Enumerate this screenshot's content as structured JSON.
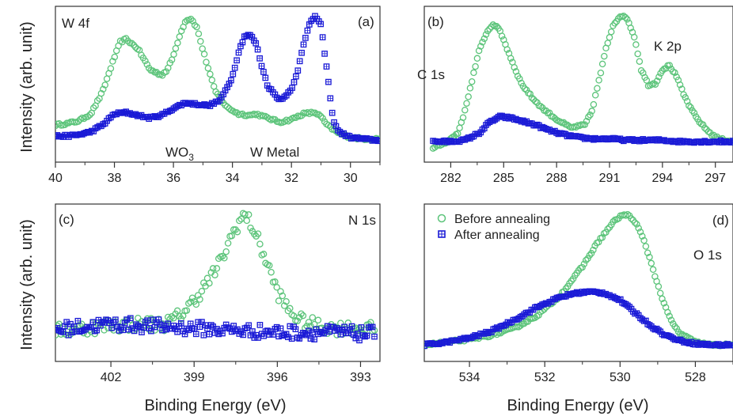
{
  "figure": {
    "ylabel": "Intensity (arb. unit)",
    "xlabel": "Binding Energy (eV)",
    "legend": [
      {
        "label": "Before annealing",
        "color": "#5cc47a",
        "marker": "circle"
      },
      {
        "label": "After annealing",
        "color": "#1b1bd6",
        "marker": "square"
      }
    ]
  },
  "chart_data": [
    {
      "type": "scatter",
      "panel": "(a)",
      "label": "W 4f",
      "xlim": [
        40,
        29
      ],
      "ylim": [
        0,
        1
      ],
      "ticks": [
        40,
        38,
        36,
        34,
        32,
        30
      ],
      "annotations": [
        "WO3",
        "W Metal"
      ],
      "series": [
        {
          "name": "Before annealing",
          "x": [
            40.0,
            39.6,
            39.2,
            38.8,
            38.4,
            38.0,
            37.8,
            37.6,
            37.2,
            36.8,
            36.4,
            36.2,
            36.0,
            35.8,
            35.6,
            35.4,
            35.2,
            35.0,
            34.6,
            34.2,
            33.8,
            33.4,
            33.2,
            32.8,
            32.4,
            32.0,
            31.6,
            31.2,
            31.0,
            30.8,
            30.4,
            30.0,
            29.6,
            29.2,
            29.0
          ],
          "y": [
            0.2,
            0.21,
            0.23,
            0.28,
            0.44,
            0.69,
            0.8,
            0.82,
            0.75,
            0.6,
            0.56,
            0.6,
            0.7,
            0.84,
            0.95,
            0.97,
            0.9,
            0.74,
            0.45,
            0.33,
            0.28,
            0.27,
            0.28,
            0.25,
            0.22,
            0.24,
            0.28,
            0.29,
            0.26,
            0.2,
            0.14,
            0.11,
            0.1,
            0.1,
            0.1
          ]
        },
        {
          "name": "After annealing",
          "x": [
            40.0,
            39.6,
            39.2,
            38.8,
            38.4,
            38.0,
            37.6,
            37.2,
            36.8,
            36.4,
            36.0,
            35.6,
            35.2,
            34.8,
            34.4,
            34.0,
            33.8,
            33.6,
            33.4,
            33.2,
            33.0,
            32.8,
            32.4,
            32.0,
            31.8,
            31.6,
            31.4,
            31.2,
            31.0,
            30.8,
            30.6,
            30.4,
            30.0,
            29.6,
            29.2,
            29.0
          ],
          "y": [
            0.12,
            0.12,
            0.13,
            0.15,
            0.2,
            0.28,
            0.29,
            0.27,
            0.25,
            0.27,
            0.32,
            0.36,
            0.35,
            0.34,
            0.38,
            0.55,
            0.72,
            0.84,
            0.85,
            0.79,
            0.62,
            0.48,
            0.38,
            0.45,
            0.58,
            0.78,
            0.92,
            0.99,
            0.92,
            0.6,
            0.25,
            0.15,
            0.11,
            0.1,
            0.09,
            0.09
          ]
        }
      ]
    },
    {
      "type": "scatter",
      "panel": "(b)",
      "label": "C 1s",
      "label2": "K 2p",
      "xlim": [
        280.5,
        298
      ],
      "ylim": [
        0,
        1
      ],
      "ticks": [
        282,
        285,
        288,
        291,
        294,
        297
      ],
      "series": [
        {
          "name": "Before annealing",
          "x": [
            281.0,
            281.8,
            282.4,
            282.8,
            283.2,
            283.6,
            284.0,
            284.4,
            284.8,
            285.2,
            285.6,
            286.0,
            286.6,
            287.2,
            288.0,
            288.8,
            289.6,
            290.0,
            290.4,
            290.8,
            291.2,
            291.6,
            292.0,
            292.4,
            292.8,
            293.2,
            293.6,
            294.0,
            294.4,
            294.8,
            295.2,
            295.6,
            296.0,
            296.4,
            296.8,
            297.2,
            298.0
          ],
          "y": [
            0.03,
            0.08,
            0.14,
            0.3,
            0.52,
            0.73,
            0.86,
            0.93,
            0.88,
            0.75,
            0.62,
            0.5,
            0.4,
            0.32,
            0.24,
            0.18,
            0.2,
            0.3,
            0.52,
            0.75,
            0.92,
            0.99,
            0.97,
            0.84,
            0.6,
            0.49,
            0.5,
            0.6,
            0.63,
            0.55,
            0.42,
            0.32,
            0.24,
            0.18,
            0.13,
            0.1,
            0.08
          ]
        },
        {
          "name": "After annealing",
          "x": [
            281.0,
            282.0,
            282.8,
            283.6,
            284.2,
            284.8,
            285.4,
            286.0,
            286.8,
            287.6,
            288.4,
            289.2,
            290.0,
            291.0,
            292.0,
            293.0,
            294.0,
            295.0,
            296.0,
            297.0,
            298.0
          ],
          "y": [
            0.08,
            0.08,
            0.09,
            0.14,
            0.22,
            0.26,
            0.25,
            0.23,
            0.2,
            0.16,
            0.13,
            0.11,
            0.1,
            0.1,
            0.09,
            0.09,
            0.09,
            0.08,
            0.08,
            0.08,
            0.08
          ]
        }
      ]
    },
    {
      "type": "scatter",
      "panel": "(c)",
      "label": "N 1s",
      "xlim": [
        404,
        392.3
      ],
      "ylim": [
        0,
        1
      ],
      "ticks": [
        402,
        399,
        396,
        393
      ],
      "series": [
        {
          "name": "Before annealing",
          "x": [
            404.0,
            403.0,
            402.0,
            401.0,
            400.0,
            399.6,
            399.2,
            398.8,
            398.4,
            398.0,
            397.6,
            397.4,
            397.2,
            397.0,
            396.8,
            396.4,
            396.0,
            395.6,
            395.2,
            394.8,
            394.4,
            394.0,
            393.0,
            392.5
          ],
          "y": [
            0.15,
            0.17,
            0.19,
            0.2,
            0.2,
            0.25,
            0.32,
            0.42,
            0.53,
            0.66,
            0.85,
            0.92,
            0.98,
            0.93,
            0.85,
            0.65,
            0.43,
            0.3,
            0.23,
            0.2,
            0.18,
            0.17,
            0.17,
            0.16
          ]
        },
        {
          "name": "After annealing",
          "x": [
            404.0,
            403.0,
            402.0,
            401.0,
            400.0,
            399.0,
            398.0,
            397.0,
            396.0,
            395.0,
            394.0,
            393.0,
            392.5
          ],
          "y": [
            0.16,
            0.18,
            0.2,
            0.19,
            0.18,
            0.17,
            0.16,
            0.15,
            0.14,
            0.14,
            0.14,
            0.13,
            0.13
          ]
        }
      ]
    },
    {
      "type": "scatter",
      "panel": "(d)",
      "label": "O 1s",
      "xlim": [
        535.2,
        527
      ],
      "ylim": [
        0,
        1
      ],
      "ticks": [
        534,
        532,
        530,
        528
      ],
      "series": [
        {
          "name": "Before annealing",
          "x": [
            535.2,
            534.6,
            534.0,
            533.4,
            532.8,
            532.2,
            531.6,
            531.0,
            530.6,
            530.2,
            530.0,
            529.8,
            529.6,
            529.4,
            529.2,
            529.0,
            528.8,
            528.6,
            528.4,
            528.0,
            527.6,
            527.0
          ],
          "y": [
            0.05,
            0.07,
            0.09,
            0.12,
            0.17,
            0.26,
            0.4,
            0.61,
            0.78,
            0.92,
            0.97,
            0.98,
            0.93,
            0.82,
            0.66,
            0.48,
            0.32,
            0.2,
            0.13,
            0.07,
            0.05,
            0.05
          ]
        },
        {
          "name": "After annealing",
          "x": [
            535.2,
            534.6,
            534.0,
            533.4,
            532.8,
            532.2,
            531.6,
            531.2,
            530.8,
            530.4,
            530.0,
            529.6,
            529.2,
            528.8,
            528.4,
            528.0,
            527.6,
            527.0
          ],
          "y": [
            0.05,
            0.07,
            0.1,
            0.15,
            0.23,
            0.32,
            0.39,
            0.42,
            0.43,
            0.42,
            0.37,
            0.28,
            0.19,
            0.12,
            0.08,
            0.06,
            0.05,
            0.05
          ]
        }
      ]
    }
  ]
}
